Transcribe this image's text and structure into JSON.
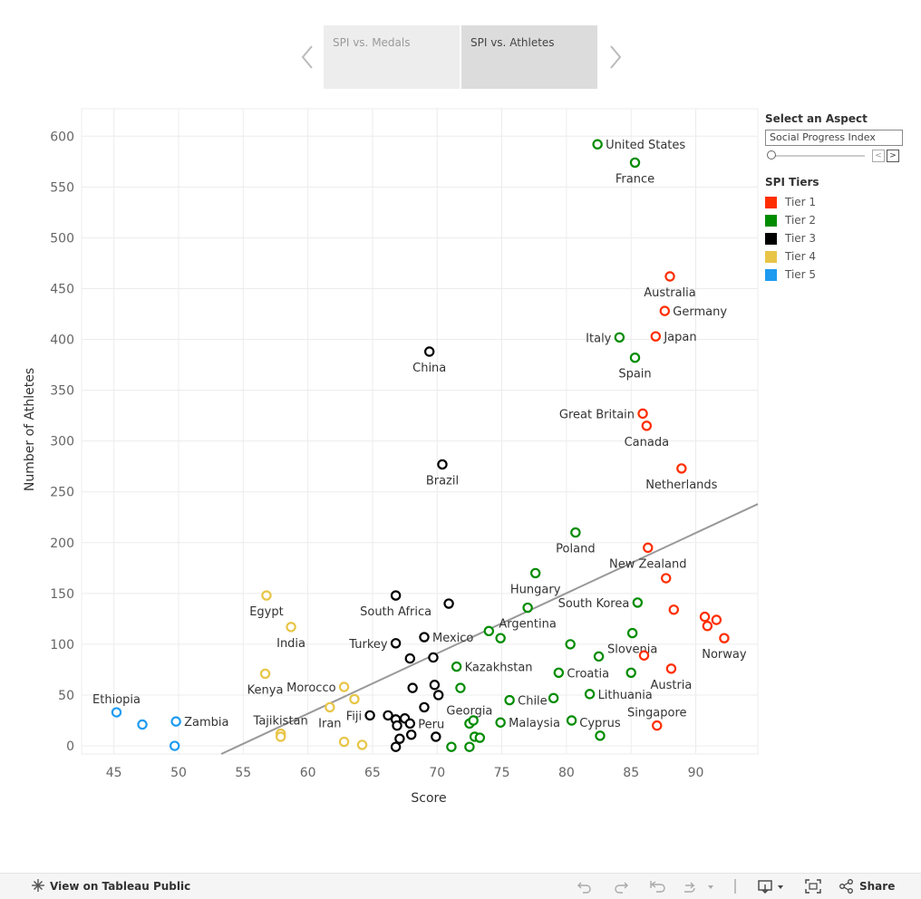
{
  "tabs": {
    "prev_icon": "chevron-left-icon",
    "next_icon": "chevron-right-icon",
    "items": [
      "SPI vs. Medals",
      "SPI vs. Athletes"
    ],
    "active_index": 1
  },
  "filter": {
    "title": "Select an Aspect",
    "value": "Social Progress Index",
    "prev_label": "<",
    "next_label": ">"
  },
  "legend": {
    "title": "SPI Tiers",
    "items": [
      {
        "label": "Tier 1",
        "color": "#ff2d00"
      },
      {
        "label": "Tier 2",
        "color": "#008c00"
      },
      {
        "label": "Tier 3",
        "color": "#000000"
      },
      {
        "label": "Tier 4",
        "color": "#e8c547"
      },
      {
        "label": "Tier 5",
        "color": "#1e9bf0"
      }
    ]
  },
  "footer": {
    "view_label": "View on Tableau Public",
    "share_label": "Share",
    "icons": [
      "undo-icon",
      "redo-icon",
      "revert-icon",
      "refresh-icon",
      "download-icon",
      "fullscreen-icon",
      "share-icon"
    ]
  },
  "chart_data": {
    "type": "scatter",
    "title": "SPI vs. Athletes",
    "xlabel": "Score",
    "ylabel": "Number of Athletes",
    "xlim": [
      42.5,
      94.8
    ],
    "ylim": [
      -8,
      627
    ],
    "xticks": [
      45,
      50,
      55,
      60,
      65,
      70,
      75,
      80,
      85,
      90
    ],
    "yticks": [
      0,
      50,
      100,
      150,
      200,
      250,
      300,
      350,
      400,
      450,
      500,
      550,
      600
    ],
    "grid": true,
    "trend_line": {
      "x0": 53.3,
      "y0": -8,
      "x1": 94.8,
      "y1": 238
    },
    "points": [
      {
        "x": 82.4,
        "y": 592,
        "tier": 2,
        "label": "United States",
        "lp": "r"
      },
      {
        "x": 85.3,
        "y": 574,
        "tier": 2,
        "label": "France",
        "lp": "b"
      },
      {
        "x": 88.0,
        "y": 462,
        "tier": 1,
        "label": "Australia",
        "lp": "b"
      },
      {
        "x": 87.6,
        "y": 428,
        "tier": 1,
        "label": "Germany",
        "lp": "r"
      },
      {
        "x": 86.9,
        "y": 403,
        "tier": 1,
        "label": "Japan",
        "lp": "r"
      },
      {
        "x": 84.1,
        "y": 402,
        "tier": 2,
        "label": "Italy",
        "lp": "l"
      },
      {
        "x": 85.3,
        "y": 382,
        "tier": 2,
        "label": "Spain",
        "lp": "b"
      },
      {
        "x": 69.4,
        "y": 388,
        "tier": 3,
        "label": "China",
        "lp": "b"
      },
      {
        "x": 85.9,
        "y": 327,
        "tier": 1,
        "label": "Great Britain",
        "lp": "l"
      },
      {
        "x": 86.2,
        "y": 315,
        "tier": 1,
        "label": "Canada",
        "lp": "b"
      },
      {
        "x": 70.4,
        "y": 277,
        "tier": 3,
        "label": "Brazil",
        "lp": "b"
      },
      {
        "x": 88.9,
        "y": 273,
        "tier": 1,
        "label": "Netherlands",
        "lp": "b"
      },
      {
        "x": 80.7,
        "y": 210,
        "tier": 2,
        "label": "Poland",
        "lp": "b"
      },
      {
        "x": 86.3,
        "y": 195,
        "tier": 1,
        "label": "New Zealand",
        "lp": "b"
      },
      {
        "x": 77.6,
        "y": 170,
        "tier": 2,
        "label": "Hungary",
        "lp": "b"
      },
      {
        "x": 87.7,
        "y": 165,
        "tier": 1,
        "label": "",
        "lp": ""
      },
      {
        "x": 56.8,
        "y": 148,
        "tier": 4,
        "label": "Egypt",
        "lp": "b"
      },
      {
        "x": 66.8,
        "y": 148,
        "tier": 3,
        "label": "South Africa",
        "lp": "b"
      },
      {
        "x": 70.9,
        "y": 140,
        "tier": 3,
        "label": "",
        "lp": ""
      },
      {
        "x": 85.5,
        "y": 141,
        "tier": 2,
        "label": "South Korea",
        "lp": "l"
      },
      {
        "x": 88.3,
        "y": 134,
        "tier": 1,
        "label": "",
        "lp": ""
      },
      {
        "x": 77.0,
        "y": 136,
        "tier": 2,
        "label": "Argentina",
        "lp": "b"
      },
      {
        "x": 90.7,
        "y": 127,
        "tier": 1,
        "label": "",
        "lp": ""
      },
      {
        "x": 91.6,
        "y": 124,
        "tier": 1,
        "label": "",
        "lp": ""
      },
      {
        "x": 90.9,
        "y": 118,
        "tier": 1,
        "label": "",
        "lp": ""
      },
      {
        "x": 92.2,
        "y": 106,
        "tier": 1,
        "label": "Norway",
        "lp": "b"
      },
      {
        "x": 58.7,
        "y": 117,
        "tier": 4,
        "label": "India",
        "lp": "b"
      },
      {
        "x": 74.0,
        "y": 113,
        "tier": 2,
        "label": "",
        "lp": ""
      },
      {
        "x": 74.9,
        "y": 106,
        "tier": 2,
        "label": "",
        "lp": ""
      },
      {
        "x": 85.1,
        "y": 111,
        "tier": 2,
        "label": "Slovenia",
        "lp": "b"
      },
      {
        "x": 69.0,
        "y": 107,
        "tier": 3,
        "label": "Mexico",
        "lp": "r"
      },
      {
        "x": 66.8,
        "y": 101,
        "tier": 3,
        "label": "Turkey",
        "lp": "l"
      },
      {
        "x": 80.3,
        "y": 100,
        "tier": 2,
        "label": "",
        "lp": ""
      },
      {
        "x": 86.0,
        "y": 89,
        "tier": 1,
        "label": "",
        "lp": ""
      },
      {
        "x": 82.5,
        "y": 88,
        "tier": 2,
        "label": "",
        "lp": ""
      },
      {
        "x": 67.9,
        "y": 86,
        "tier": 3,
        "label": "",
        "lp": ""
      },
      {
        "x": 69.7,
        "y": 87,
        "tier": 3,
        "label": "",
        "lp": ""
      },
      {
        "x": 71.5,
        "y": 78,
        "tier": 2,
        "label": "Kazakhstan",
        "lp": "r"
      },
      {
        "x": 88.1,
        "y": 76,
        "tier": 1,
        "label": "Austria",
        "lp": "b"
      },
      {
        "x": 79.4,
        "y": 72,
        "tier": 2,
        "label": "Croatia",
        "lp": "r"
      },
      {
        "x": 85.0,
        "y": 72,
        "tier": 2,
        "label": "",
        "lp": ""
      },
      {
        "x": 56.7,
        "y": 71,
        "tier": 4,
        "label": "Kenya",
        "lp": "b"
      },
      {
        "x": 62.8,
        "y": 58,
        "tier": 4,
        "label": "Morocco",
        "lp": "l"
      },
      {
        "x": 68.1,
        "y": 57,
        "tier": 3,
        "label": "",
        "lp": ""
      },
      {
        "x": 69.8,
        "y": 60,
        "tier": 3,
        "label": "",
        "lp": ""
      },
      {
        "x": 71.8,
        "y": 57,
        "tier": 2,
        "label": "",
        "lp": ""
      },
      {
        "x": 70.1,
        "y": 50,
        "tier": 3,
        "label": "",
        "lp": ""
      },
      {
        "x": 81.8,
        "y": 51,
        "tier": 2,
        "label": "Lithuania",
        "lp": "r"
      },
      {
        "x": 63.6,
        "y": 46,
        "tier": 4,
        "label": "",
        "lp": ""
      },
      {
        "x": 75.6,
        "y": 45,
        "tier": 2,
        "label": "Chile",
        "lp": "r"
      },
      {
        "x": 79.0,
        "y": 47,
        "tier": 2,
        "label": "",
        "lp": ""
      },
      {
        "x": 45.2,
        "y": 33,
        "tier": 5,
        "label": "Ethiopia",
        "lp": "t"
      },
      {
        "x": 61.7,
        "y": 38,
        "tier": 4,
        "label": "Iran",
        "lp": "b"
      },
      {
        "x": 69.0,
        "y": 38,
        "tier": 3,
        "label": "",
        "lp": ""
      },
      {
        "x": 64.8,
        "y": 30,
        "tier": 3,
        "label": "Fiji",
        "lp": "l"
      },
      {
        "x": 66.2,
        "y": 30,
        "tier": 3,
        "label": "",
        "lp": ""
      },
      {
        "x": 66.8,
        "y": 26,
        "tier": 3,
        "label": "",
        "lp": ""
      },
      {
        "x": 67.5,
        "y": 27,
        "tier": 3,
        "label": "",
        "lp": ""
      },
      {
        "x": 66.9,
        "y": 20,
        "tier": 3,
        "label": "",
        "lp": ""
      },
      {
        "x": 67.9,
        "y": 22,
        "tier": 3,
        "label": "Peru",
        "lp": "r"
      },
      {
        "x": 72.5,
        "y": 22,
        "tier": 2,
        "label": "Georgia",
        "lp": "t"
      },
      {
        "x": 72.8,
        "y": 25,
        "tier": 2,
        "label": "",
        "lp": ""
      },
      {
        "x": 74.9,
        "y": 23,
        "tier": 2,
        "label": "Malaysia",
        "lp": "r"
      },
      {
        "x": 80.4,
        "y": 25,
        "tier": 2,
        "label": "",
        "lp": ""
      },
      {
        "x": 82.6,
        "y": 10,
        "tier": 2,
        "label": "Cyprus",
        "lp": "t"
      },
      {
        "x": 87.0,
        "y": 20,
        "tier": 1,
        "label": "Singapore",
        "lp": "t"
      },
      {
        "x": 47.2,
        "y": 21,
        "tier": 5,
        "label": "",
        "lp": ""
      },
      {
        "x": 49.8,
        "y": 24,
        "tier": 5,
        "label": "Zambia",
        "lp": "r"
      },
      {
        "x": 49.7,
        "y": 0,
        "tier": 5,
        "label": "",
        "lp": ""
      },
      {
        "x": 57.9,
        "y": 12,
        "tier": 4,
        "label": "Tajikistan",
        "lp": "t"
      },
      {
        "x": 57.9,
        "y": 9,
        "tier": 4,
        "label": "",
        "lp": ""
      },
      {
        "x": 62.8,
        "y": 4,
        "tier": 4,
        "label": "",
        "lp": ""
      },
      {
        "x": 64.2,
        "y": 1,
        "tier": 4,
        "label": "",
        "lp": ""
      },
      {
        "x": 67.1,
        "y": 7,
        "tier": 3,
        "label": "",
        "lp": ""
      },
      {
        "x": 66.8,
        "y": -1,
        "tier": 3,
        "label": "",
        "lp": ""
      },
      {
        "x": 68.0,
        "y": 11,
        "tier": 3,
        "label": "",
        "lp": ""
      },
      {
        "x": 69.9,
        "y": 9,
        "tier": 3,
        "label": "",
        "lp": ""
      },
      {
        "x": 71.1,
        "y": -1,
        "tier": 2,
        "label": "",
        "lp": ""
      },
      {
        "x": 72.5,
        "y": -1,
        "tier": 2,
        "label": "",
        "lp": ""
      },
      {
        "x": 72.9,
        "y": 9,
        "tier": 2,
        "label": "",
        "lp": ""
      },
      {
        "x": 73.3,
        "y": 8,
        "tier": 2,
        "label": "",
        "lp": ""
      }
    ]
  }
}
